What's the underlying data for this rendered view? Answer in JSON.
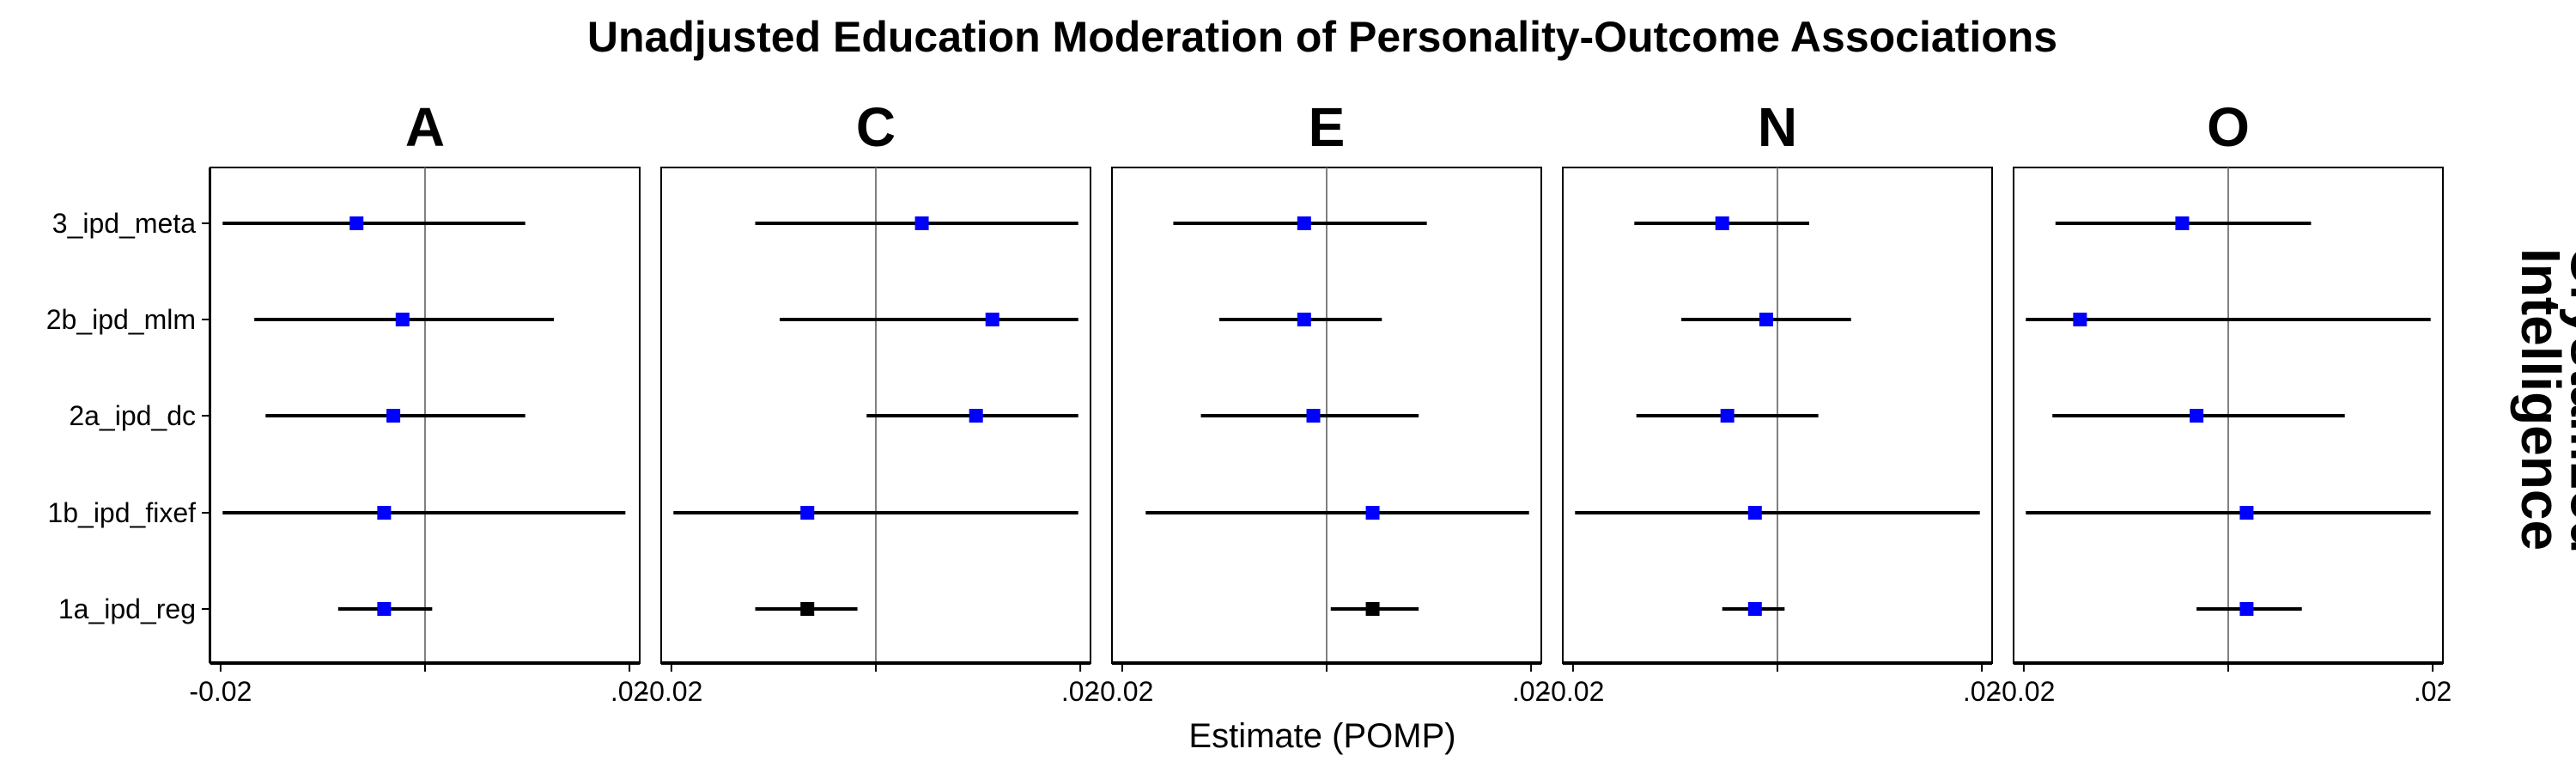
{
  "chart_data": {
    "type": "forest",
    "title": "Unadjusted Education Moderation of Personality-Outcome Associations",
    "xlabel": "Estimate (POMP)",
    "row_strip": "Crystallized\nIntelligence",
    "x_range": [
      -0.021,
      0.021
    ],
    "x_ticks": [
      -0.02,
      0.0,
      0.02
    ],
    "x_tick_labels": [
      "-0.02",
      "",
      ".02"
    ],
    "models": [
      "3_ipd_meta",
      "2b_ipd_mlm",
      "2a_ipd_dc",
      "1b_ipd_fixef",
      "1a_ipd_reg"
    ],
    "colors": {
      "significant": "#000000",
      "nonsignificant": "#0000ff",
      "ci": "#000000",
      "zero_line": "#808080"
    },
    "facets": [
      {
        "name": "A",
        "estimates": [
          {
            "model": "3_ipd_meta",
            "est": -0.0067,
            "lower": -0.0198,
            "upper": 0.0098,
            "significant": false
          },
          {
            "model": "2b_ipd_mlm",
            "est": -0.0022,
            "lower": -0.0167,
            "upper": 0.0126,
            "significant": false
          },
          {
            "model": "2a_ipd_dc",
            "est": -0.0031,
            "lower": -0.0156,
            "upper": 0.0098,
            "significant": false
          },
          {
            "model": "1b_ipd_fixef",
            "est": -0.004,
            "lower": -0.0198,
            "upper": 0.0196,
            "significant": false
          },
          {
            "model": "1a_ipd_reg",
            "est": -0.004,
            "lower": -0.0085,
            "upper": 0.0007,
            "significant": false
          }
        ]
      },
      {
        "name": "C",
        "estimates": [
          {
            "model": "3_ipd_meta",
            "est": 0.0045,
            "lower": -0.0118,
            "upper": 0.0198,
            "significant": false
          },
          {
            "model": "2b_ipd_mlm",
            "est": 0.0114,
            "lower": -0.0094,
            "upper": 0.0198,
            "significant": false
          },
          {
            "model": "2a_ipd_dc",
            "est": 0.0098,
            "lower": -0.0009,
            "upper": 0.0198,
            "significant": false
          },
          {
            "model": "1b_ipd_fixef",
            "est": -0.0067,
            "lower": -0.0198,
            "upper": 0.0198,
            "significant": false
          },
          {
            "model": "1a_ipd_reg",
            "est": -0.0067,
            "lower": -0.0118,
            "upper": -0.0018,
            "significant": true
          }
        ]
      },
      {
        "name": "E",
        "estimates": [
          {
            "model": "3_ipd_meta",
            "est": -0.0022,
            "lower": -0.015,
            "upper": 0.0098,
            "significant": false
          },
          {
            "model": "2b_ipd_mlm",
            "est": -0.0022,
            "lower": -0.0105,
            "upper": 0.0054,
            "significant": false
          },
          {
            "model": "2a_ipd_dc",
            "est": -0.0013,
            "lower": -0.0123,
            "upper": 0.009,
            "significant": false
          },
          {
            "model": "1b_ipd_fixef",
            "est": 0.0045,
            "lower": -0.0177,
            "upper": 0.0198,
            "significant": false
          },
          {
            "model": "1a_ipd_reg",
            "est": 0.0045,
            "lower": 0.0004,
            "upper": 0.009,
            "significant": true
          }
        ]
      },
      {
        "name": "N",
        "estimates": [
          {
            "model": "3_ipd_meta",
            "est": -0.0054,
            "lower": -0.014,
            "upper": 0.0031,
            "significant": false
          },
          {
            "model": "2b_ipd_mlm",
            "est": -0.0011,
            "lower": -0.0094,
            "upper": 0.0072,
            "significant": false
          },
          {
            "model": "2a_ipd_dc",
            "est": -0.0049,
            "lower": -0.0138,
            "upper": 0.004,
            "significant": false
          },
          {
            "model": "1b_ipd_fixef",
            "est": -0.0022,
            "lower": -0.0198,
            "upper": 0.0198,
            "significant": false
          },
          {
            "model": "1a_ipd_reg",
            "est": -0.0022,
            "lower": -0.0054,
            "upper": 0.0007,
            "significant": false
          }
        ]
      },
      {
        "name": "O",
        "estimates": [
          {
            "model": "3_ipd_meta",
            "est": -0.0045,
            "lower": -0.0169,
            "upper": 0.0081,
            "significant": false
          },
          {
            "model": "2b_ipd_mlm",
            "est": -0.0145,
            "lower": -0.0198,
            "upper": 0.0198,
            "significant": false
          },
          {
            "model": "2a_ipd_dc",
            "est": -0.0031,
            "lower": -0.0172,
            "upper": 0.0114,
            "significant": false
          },
          {
            "model": "1b_ipd_fixef",
            "est": 0.0018,
            "lower": -0.0198,
            "upper": 0.0198,
            "significant": false
          },
          {
            "model": "1a_ipd_reg",
            "est": 0.0018,
            "lower": -0.0031,
            "upper": 0.0072,
            "significant": false
          }
        ]
      }
    ]
  }
}
